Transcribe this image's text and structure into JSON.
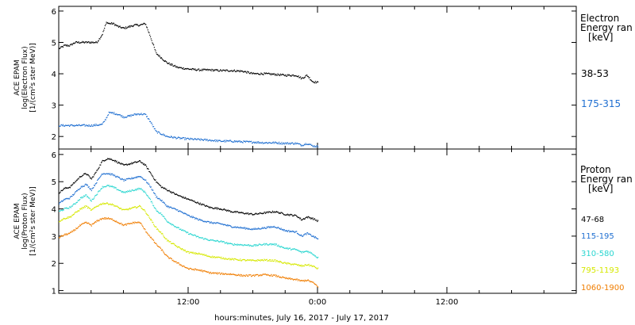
{
  "chart_data": [
    {
      "type": "line",
      "panel": "electron",
      "ylabel_lines": [
        "ACE EPAM",
        "log(Electron Flux)",
        "[1/(cm²s ster MeV)]"
      ],
      "legend_title_lines": [
        "Electron",
        "Energy ran",
        "[keV]"
      ],
      "yticks": [
        2,
        3,
        4,
        5,
        6
      ],
      "ylim": [
        1.6,
        6.15
      ],
      "xlim_hours": [
        0,
        48
      ],
      "series": [
        {
          "name": "38-53",
          "color": "#000000",
          "x": [
            0,
            0.5,
            1,
            1.5,
            2,
            2.5,
            3,
            3.5,
            4,
            4.4,
            4.6,
            5,
            5.5,
            6,
            6.5,
            7,
            7.5,
            8,
            8.5,
            9,
            9.5,
            10,
            11,
            12,
            13,
            14,
            15,
            16,
            17,
            18,
            19,
            20,
            21,
            22,
            22.5,
            23,
            23.5,
            24
          ],
          "values": [
            4.8,
            4.9,
            4.9,
            5.0,
            5.0,
            5.0,
            5.0,
            5.0,
            5.25,
            5.65,
            5.6,
            5.6,
            5.5,
            5.45,
            5.5,
            5.55,
            5.55,
            5.6,
            5.15,
            4.65,
            4.5,
            4.35,
            4.2,
            4.15,
            4.12,
            4.12,
            4.1,
            4.1,
            4.08,
            4.0,
            4.0,
            3.98,
            3.95,
            3.95,
            3.85,
            3.95,
            3.75,
            3.72
          ]
        },
        {
          "name": "175-315",
          "color": "#1f6fd1",
          "x": [
            0,
            1,
            2,
            3,
            4,
            4.4,
            4.6,
            5,
            5.5,
            6,
            6.5,
            7,
            7.5,
            8,
            8.5,
            9,
            9.5,
            10,
            11,
            12,
            13,
            14,
            15,
            16,
            17,
            18,
            19,
            20,
            21,
            22,
            22.5,
            23,
            23.5,
            24
          ],
          "values": [
            2.35,
            2.35,
            2.35,
            2.35,
            2.38,
            2.6,
            2.75,
            2.75,
            2.7,
            2.62,
            2.65,
            2.7,
            2.72,
            2.7,
            2.45,
            2.15,
            2.08,
            2.0,
            1.95,
            1.92,
            1.9,
            1.88,
            1.85,
            1.85,
            1.83,
            1.82,
            1.8,
            1.8,
            1.78,
            1.78,
            1.72,
            1.78,
            1.7,
            1.68
          ]
        }
      ]
    },
    {
      "type": "line",
      "panel": "proton",
      "ylabel_lines": [
        "ACE EPAM",
        "log(Proton Flux)",
        "[1/(cm²s ster MeV)]"
      ],
      "legend_title_lines": [
        "Proton",
        "Energy ran",
        "[keV]"
      ],
      "yticks": [
        1,
        2,
        3,
        4,
        5,
        6
      ],
      "ylim": [
        0.9,
        6.2
      ],
      "xlim_hours": [
        0,
        48
      ],
      "xtick_hours": [
        12,
        24,
        36
      ],
      "xtick_labels": [
        "12:00",
        "0:00",
        "12:00"
      ],
      "xlabel": "hours:minutes, July 16, 2017 - July 17, 2017",
      "series": [
        {
          "name": "47-68",
          "color": "#000000",
          "x": [
            0,
            0.5,
            1,
            1.5,
            2,
            2.5,
            3,
            3.5,
            4,
            4.5,
            5,
            5.5,
            6,
            6.5,
            7,
            7.5,
            8,
            8.5,
            9,
            9.5,
            10,
            11,
            12,
            13,
            14,
            15,
            16,
            17,
            18,
            19,
            20,
            21,
            22,
            22.5,
            23,
            23.5,
            24
          ],
          "values": [
            4.6,
            4.75,
            4.8,
            5.0,
            5.2,
            5.3,
            5.1,
            5.4,
            5.75,
            5.85,
            5.8,
            5.7,
            5.6,
            5.65,
            5.7,
            5.75,
            5.6,
            5.3,
            5.0,
            4.8,
            4.7,
            4.5,
            4.35,
            4.2,
            4.05,
            4.0,
            3.9,
            3.85,
            3.8,
            3.85,
            3.9,
            3.8,
            3.75,
            3.6,
            3.7,
            3.65,
            3.55
          ]
        },
        {
          "name": "115-195",
          "color": "#1f6fd1",
          "x": [
            0,
            0.5,
            1,
            1.5,
            2,
            2.5,
            3,
            3.5,
            4,
            4.5,
            5,
            5.5,
            6,
            6.5,
            7,
            7.5,
            8,
            8.5,
            9,
            9.5,
            10,
            11,
            12,
            13,
            14,
            15,
            16,
            17,
            18,
            19,
            20,
            21,
            22,
            22.5,
            23,
            23.5,
            24
          ],
          "values": [
            4.2,
            4.35,
            4.4,
            4.6,
            4.8,
            4.9,
            4.7,
            5.0,
            5.3,
            5.3,
            5.25,
            5.15,
            5.05,
            5.1,
            5.15,
            5.2,
            5.05,
            4.8,
            4.45,
            4.3,
            4.1,
            3.95,
            3.75,
            3.6,
            3.5,
            3.45,
            3.35,
            3.3,
            3.25,
            3.3,
            3.35,
            3.2,
            3.15,
            3.0,
            3.1,
            3.0,
            2.9
          ]
        },
        {
          "name": "310-580",
          "color": "#2ad6d0",
          "x": [
            0,
            0.5,
            1,
            1.5,
            2,
            2.5,
            3,
            3.5,
            4,
            4.5,
            5,
            5.5,
            6,
            6.5,
            7,
            7.5,
            8,
            8.5,
            9,
            9.5,
            10,
            11,
            12,
            13,
            14,
            15,
            16,
            17,
            18,
            19,
            20,
            21,
            22,
            22.5,
            23,
            23.5,
            24
          ],
          "values": [
            3.9,
            4.0,
            4.05,
            4.2,
            4.4,
            4.5,
            4.3,
            4.55,
            4.8,
            4.85,
            4.8,
            4.7,
            4.6,
            4.65,
            4.7,
            4.75,
            4.6,
            4.3,
            3.95,
            3.8,
            3.55,
            3.3,
            3.1,
            2.95,
            2.85,
            2.8,
            2.7,
            2.68,
            2.65,
            2.7,
            2.7,
            2.55,
            2.5,
            2.4,
            2.45,
            2.35,
            2.2
          ]
        },
        {
          "name": "795-1193",
          "color": "#d6e800",
          "x": [
            0,
            0.5,
            1,
            1.5,
            2,
            2.5,
            3,
            3.5,
            4,
            4.5,
            5,
            5.5,
            6,
            6.5,
            7,
            7.5,
            8,
            8.5,
            9,
            9.5,
            10,
            11,
            12,
            13,
            14,
            15,
            16,
            17,
            18,
            19,
            20,
            21,
            22,
            22.5,
            23,
            23.5,
            24
          ],
          "values": [
            3.55,
            3.65,
            3.7,
            3.85,
            4.0,
            4.1,
            3.95,
            4.1,
            4.2,
            4.2,
            4.15,
            4.05,
            3.95,
            4.0,
            4.05,
            4.1,
            3.9,
            3.6,
            3.3,
            3.1,
            2.85,
            2.6,
            2.4,
            2.35,
            2.25,
            2.2,
            2.15,
            2.12,
            2.1,
            2.12,
            2.1,
            2.0,
            1.95,
            1.9,
            1.95,
            1.9,
            1.8
          ]
        },
        {
          "name": "1060-1900",
          "color": "#f07d00",
          "x": [
            0,
            0.5,
            1,
            1.5,
            2,
            2.5,
            3,
            3.5,
            4,
            4.5,
            5,
            5.5,
            6,
            6.5,
            7,
            7.5,
            8,
            8.5,
            9,
            9.5,
            10,
            11,
            12,
            13,
            14,
            15,
            16,
            17,
            18,
            19,
            20,
            21,
            22,
            22.5,
            23,
            23.5,
            24
          ],
          "values": [
            2.95,
            3.05,
            3.1,
            3.25,
            3.4,
            3.5,
            3.4,
            3.55,
            3.65,
            3.65,
            3.6,
            3.5,
            3.4,
            3.45,
            3.5,
            3.5,
            3.2,
            2.95,
            2.7,
            2.5,
            2.25,
            2.0,
            1.8,
            1.75,
            1.65,
            1.62,
            1.6,
            1.55,
            1.55,
            1.58,
            1.55,
            1.45,
            1.4,
            1.35,
            1.38,
            1.3,
            1.15
          ]
        }
      ]
    }
  ]
}
